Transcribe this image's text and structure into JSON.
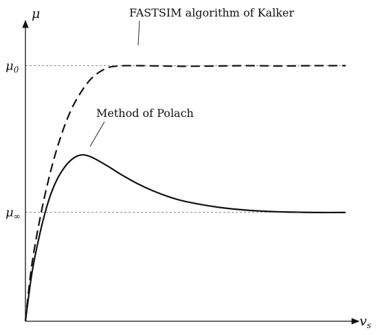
{
  "chart_data": {
    "type": "line",
    "title": "",
    "xlabel": "v",
    "xlabel_sub": "s",
    "ylabel": "μ",
    "xlim": [
      0,
      1
    ],
    "ylim": [
      0,
      1
    ],
    "y_ticks": [
      {
        "label_main": "μ",
        "label_sub": "0",
        "value": 0.86
      },
      {
        "label_main": "μ",
        "label_sub": "∞",
        "value": 0.367
      }
    ],
    "reference_lines": [
      {
        "value": 0.86,
        "style": "dotted"
      },
      {
        "value": 0.367,
        "style": "dotted"
      }
    ],
    "series": [
      {
        "label": "FASTSIM algorithm of Kalker",
        "line_style": "dashed",
        "x": [
          0,
          0.02,
          0.05,
          0.08,
          0.11,
          0.14,
          0.17,
          0.2,
          0.23,
          0.26,
          0.28,
          0.31,
          0.33,
          0.36,
          0.42,
          0.5,
          0.6,
          0.7,
          0.8,
          0.9,
          1.0
        ],
        "y": [
          0,
          0.19,
          0.37,
          0.51,
          0.62,
          0.705,
          0.765,
          0.81,
          0.838,
          0.854,
          0.858,
          0.86,
          0.86,
          0.86,
          0.859,
          0.858,
          0.859,
          0.86,
          0.859,
          0.86,
          0.86
        ]
      },
      {
        "label": "Method of Polach",
        "line_style": "solid",
        "x": [
          0,
          0.02,
          0.04,
          0.06,
          0.08,
          0.1,
          0.12,
          0.14,
          0.16,
          0.18,
          0.2,
          0.22,
          0.26,
          0.3,
          0.35,
          0.4,
          0.45,
          0.5,
          0.6,
          0.7,
          0.8,
          0.85,
          0.9,
          1.0
        ],
        "y": [
          0,
          0.16,
          0.27,
          0.36,
          0.43,
          0.48,
          0.515,
          0.54,
          0.555,
          0.56,
          0.555,
          0.545,
          0.52,
          0.493,
          0.463,
          0.438,
          0.418,
          0.403,
          0.384,
          0.373,
          0.368,
          0.367,
          0.366,
          0.366
        ]
      }
    ],
    "annotations": [
      {
        "text": "FASTSIM algorithm of Kalker",
        "series_index": 0
      },
      {
        "text": "Method of Polach",
        "series_index": 1
      }
    ],
    "grid": false,
    "legend": "none"
  }
}
